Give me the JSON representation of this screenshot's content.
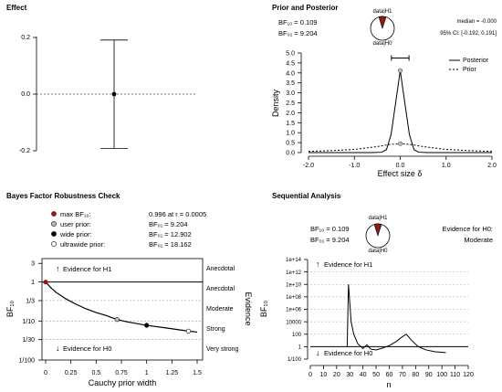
{
  "effect": {
    "title": "Effect",
    "yticks": [
      "0.2",
      "0.0",
      "-0.2"
    ],
    "median": 0.0,
    "ci": [
      -0.192,
      0.191
    ]
  },
  "posterior": {
    "title": "Prior and Posterior",
    "bf10": "BF₁₀ = 0.109",
    "bf01": "BF₀₁ = 9.204",
    "pie_top": "data|H1",
    "pie_bottom": "data|H0",
    "median_text": "median = -0.000",
    "ci_text": "95% CI: [-0.192, 0.191]",
    "legend": [
      "Posterior",
      "Prior"
    ],
    "xlabel": "Effect size δ",
    "ylabel": "Density"
  },
  "robustness": {
    "title": "Bayes Factor Robustness Check",
    "legend": [
      {
        "label": "max BF₁₀:",
        "value": "0.996 at r = 0.0005",
        "color": "#8b1a1a"
      },
      {
        "label": "user prior:",
        "value": "BF₀₁ = 9.204",
        "color": "#bbbbbb"
      },
      {
        "label": "wide prior:",
        "value": "BF₀₁ = 12.902",
        "color": "#000000"
      },
      {
        "label": "ultrawide prior:",
        "value": "BF₀₁ = 18.162",
        "color": "#ffffff"
      }
    ],
    "xlabel": "Cauchy prior width",
    "ylabel": "BF₁₀",
    "evidence_h1": "Evidence for H1",
    "evidence_h0": "Evidence for H0",
    "evidence_title": "Evidence",
    "categories": [
      "Anecdotal",
      "Anecdotal",
      "Moderate",
      "Strong",
      "Very strong"
    ]
  },
  "sequential": {
    "title": "Sequential Analysis",
    "bf10": "BF₁₀ = 0.109",
    "bf01": "BF₀₁ = 9.204",
    "pie_top": "data|H1",
    "pie_bottom": "data|H0",
    "evidence_text": "Evidence for H0: Moderate",
    "xlabel": "n",
    "ylabel": "BF₁₀",
    "evidence_h1": "Evidence for H1",
    "evidence_h0": "Evidence for H0"
  },
  "chart_data": [
    {
      "type": "scatter",
      "title": "Effect",
      "ylim": [
        -0.25,
        0.25
      ],
      "yticks": [
        0.2,
        0.0,
        -0.2
      ],
      "points": [
        {
          "y": 0.0,
          "lower": -0.192,
          "upper": 0.191
        }
      ]
    },
    {
      "type": "line",
      "title": "Prior and Posterior",
      "xlabel": "Effect size δ",
      "ylabel": "Density",
      "xlim": [
        -2,
        2
      ],
      "ylim": [
        0,
        5
      ],
      "xticks": [
        -2.0,
        -1.0,
        0.0,
        1.0,
        2.0
      ],
      "yticks": [
        0.0,
        0.5,
        1.0,
        1.5,
        2.0,
        2.5,
        3.0,
        3.5,
        4.0,
        4.5,
        5.0
      ],
      "series": [
        {
          "name": "Posterior",
          "style": "solid",
          "x": [
            -2.0,
            -1.0,
            -0.6,
            -0.4,
            -0.3,
            -0.2,
            -0.1,
            0.0,
            0.1,
            0.2,
            0.3,
            0.4,
            0.6,
            1.0,
            2.0
          ],
          "y": [
            0.0,
            0.0,
            0.0,
            0.02,
            0.15,
            0.9,
            2.5,
            4.12,
            2.5,
            0.9,
            0.15,
            0.02,
            0.0,
            0.0,
            0.0
          ]
        },
        {
          "name": "Prior",
          "style": "dashed",
          "x": [
            -2.0,
            -1.5,
            -1.0,
            -0.5,
            -0.25,
            0.0,
            0.25,
            0.5,
            1.0,
            1.5,
            2.0
          ],
          "y": [
            0.06,
            0.1,
            0.16,
            0.3,
            0.4,
            0.45,
            0.4,
            0.3,
            0.16,
            0.1,
            0.06
          ]
        }
      ],
      "credible_interval": [
        -0.192,
        0.191
      ],
      "ci_bar_y": 4.75,
      "markers": [
        {
          "x": 0.0,
          "y": 4.12
        },
        {
          "x": 0.0,
          "y": 0.45
        }
      ]
    },
    {
      "type": "line",
      "title": "Bayes Factor Robustness Check",
      "xlabel": "Cauchy prior width",
      "ylabel": "BF₁₀",
      "xlim": [
        0,
        1.5
      ],
      "xticks": [
        0,
        0.25,
        0.5,
        0.75,
        1,
        1.25,
        1.5
      ],
      "yscale": "log",
      "ytick_labels": [
        "1/100",
        "1/30",
        "1/10",
        "1/3",
        "1",
        "3"
      ],
      "ytick_values": [
        0.01,
        0.0333,
        0.1,
        0.3333,
        1,
        3
      ],
      "series": [
        {
          "name": "BF10",
          "x": [
            0.0005,
            0.05,
            0.1,
            0.2,
            0.3,
            0.4,
            0.5,
            0.6,
            0.707,
            0.8,
            1.0,
            1.2,
            1.414,
            1.5
          ],
          "y": [
            0.996,
            0.72,
            0.55,
            0.37,
            0.27,
            0.205,
            0.165,
            0.138,
            0.109,
            0.096,
            0.0775,
            0.066,
            0.0551,
            0.052
          ]
        }
      ],
      "markers": [
        {
          "name": "max BF10",
          "x": 0.0005,
          "y": 0.996,
          "color": "#8b1a1a"
        },
        {
          "name": "user prior",
          "x": 0.707,
          "y": 0.109,
          "color": "#bbbbbb"
        },
        {
          "name": "wide prior",
          "x": 1.0,
          "y": 0.0775,
          "color": "#000000"
        },
        {
          "name": "ultrawide prior",
          "x": 1.414,
          "y": 0.0551,
          "color": "#ffffff"
        }
      ]
    },
    {
      "type": "line",
      "title": "Sequential Analysis",
      "xlabel": "n",
      "ylabel": "BF₁₀",
      "xlim": [
        0,
        120
      ],
      "xticks": [
        0,
        10,
        20,
        30,
        40,
        50,
        60,
        70,
        80,
        90,
        100,
        110,
        120
      ],
      "yscale": "log",
      "ytick_labels": [
        "1/100",
        "1",
        "100",
        "10000",
        "1e+06",
        "1e+08",
        "1e+10",
        "1e+12",
        "1e+14"
      ],
      "ytick_values": [
        0.01,
        1,
        100,
        10000,
        1000000,
        100000000,
        10000000000,
        1000000000000,
        100000000000000
      ],
      "series": [
        {
          "name": "BF10",
          "x": [
            28,
            29,
            30,
            31,
            33,
            36,
            40,
            43,
            46,
            50,
            55,
            60,
            65,
            70,
            73,
            77,
            82,
            88,
            95,
            103
          ],
          "y": [
            1,
            10000000000.0,
            10000000.0,
            10000.0,
            100,
            3,
            0.5,
            2,
            0.4,
            0.3,
            0.6,
            1.5,
            6,
            40,
            100,
            10,
            1,
            0.3,
            0.15,
            0.109
          ]
        }
      ]
    }
  ]
}
